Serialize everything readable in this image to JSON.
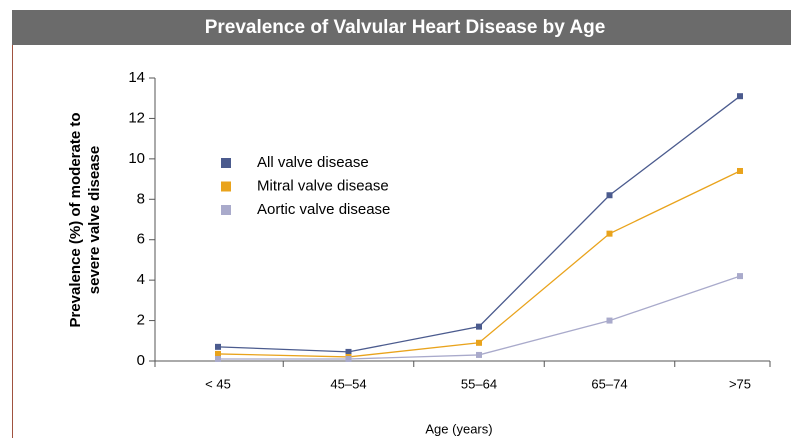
{
  "chart_data": {
    "type": "line",
    "title": "Prevalence of Valvular Heart Disease by Age",
    "x_label": "Age (years)",
    "y_label": [
      "Prevalence (%) of moderate to",
      "severe valve disease"
    ],
    "categories": [
      "< 45",
      "45–54",
      "55–64",
      "65–74",
      ">75"
    ],
    "series": [
      {
        "name": "All valve disease",
        "color": "#4b5b8e",
        "values": [
          0.7,
          0.45,
          1.7,
          8.2,
          13.1
        ]
      },
      {
        "name": "Mitral valve disease",
        "color": "#e9a31c",
        "values": [
          0.35,
          0.2,
          0.9,
          6.3,
          9.4
        ]
      },
      {
        "name": "Aortic valve disease",
        "color": "#a9aacb",
        "values": [
          0.1,
          0.1,
          0.3,
          2.0,
          4.2
        ]
      }
    ],
    "ylim": [
      0,
      14
    ],
    "yticks": [
      0,
      2,
      4,
      6,
      8,
      10,
      12,
      14
    ],
    "legend": "upper left"
  }
}
